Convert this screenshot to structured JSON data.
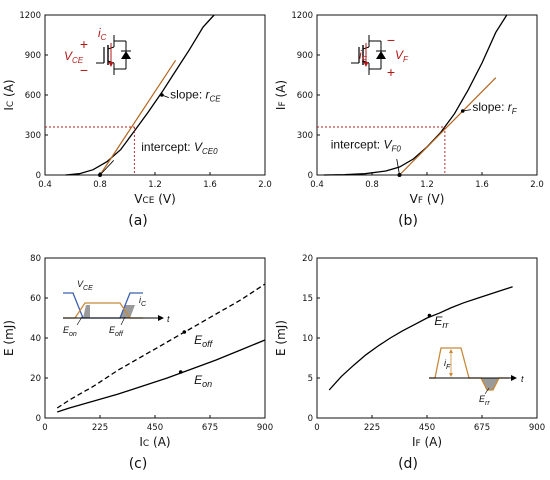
{
  "colors": {
    "axis": "#111111",
    "curve": "#000000",
    "fit": "#b5651d",
    "guide": "#b01818",
    "inset_blue": "#3a5fb0",
    "inset_orange": "#c8893a",
    "inset_gray": "#9a9a9a",
    "symbol_red": "#b01818"
  },
  "chart_data": [
    {
      "id": "a",
      "type": "line",
      "panel_label": "(a)",
      "xlabel": "VCE (V)",
      "ylabel": "IC (A)",
      "xlim": [
        0.4,
        2.0
      ],
      "ylim": [
        0,
        1200
      ],
      "xticks": [
        "0.4",
        "0.8",
        "1.2",
        "1.6",
        "2.0"
      ],
      "yticks": [
        "0",
        "300",
        "600",
        "900",
        "1200"
      ],
      "series": [
        {
          "role": "curve",
          "x": [
            0.55,
            0.65,
            0.75,
            0.85,
            0.95,
            1.05,
            1.15,
            1.25,
            1.35,
            1.45,
            1.55,
            1.63
          ],
          "y": [
            0,
            10,
            40,
            100,
            190,
            330,
            470,
            620,
            780,
            940,
            1110,
            1200
          ]
        },
        {
          "role": "fit",
          "x": [
            0.8,
            1.35
          ],
          "y": [
            0,
            860
          ]
        }
      ],
      "operating_point": {
        "x": 1.05,
        "y": 360
      },
      "annotations": [
        {
          "text": "slope: ",
          "symbol": "r",
          "sub": "CE"
        },
        {
          "text": "intercept: ",
          "symbol": "V",
          "sub": "CE0"
        }
      ],
      "symbol": {
        "current": "i",
        "current_sub": "C",
        "voltage": "V",
        "voltage_sub": "CE",
        "plus": "+",
        "minus": "−"
      }
    },
    {
      "id": "b",
      "type": "line",
      "panel_label": "(b)",
      "xlabel": "VF (V)",
      "ylabel": "IF (A)",
      "xlim": [
        0.4,
        2.0
      ],
      "ylim": [
        0,
        1200
      ],
      "xticks": [
        "0.4",
        "0.8",
        "1.2",
        "1.6",
        "2.0"
      ],
      "yticks": [
        "0",
        "300",
        "600",
        "900",
        "1200"
      ],
      "series": [
        {
          "role": "curve",
          "x": [
            0.45,
            0.6,
            0.75,
            0.9,
            1.0,
            1.1,
            1.2,
            1.3,
            1.4,
            1.5,
            1.6,
            1.7,
            1.78
          ],
          "y": [
            0,
            3,
            10,
            30,
            60,
            120,
            210,
            320,
            460,
            640,
            840,
            1070,
            1200
          ]
        },
        {
          "role": "fit",
          "x": [
            1.0,
            1.7
          ],
          "y": [
            0,
            730
          ]
        }
      ],
      "operating_point": {
        "x": 1.33,
        "y": 360
      },
      "annotations": [
        {
          "text": "slope: ",
          "symbol": "r",
          "sub": "F"
        },
        {
          "text": "intercept: ",
          "symbol": "V",
          "sub": "F0"
        }
      ],
      "symbol": {
        "current": "i",
        "current_sub": "F",
        "voltage": "V",
        "voltage_sub": "F",
        "plus": "+",
        "minus": "−"
      }
    },
    {
      "id": "c",
      "type": "line",
      "panel_label": "(c)",
      "xlabel": "IC (A)",
      "ylabel": "E (mJ)",
      "xlim": [
        0,
        900
      ],
      "ylim": [
        0,
        80
      ],
      "xticks": [
        "0",
        "225",
        "450",
        "675",
        "900"
      ],
      "yticks": [
        "0",
        "20",
        "40",
        "60",
        "80"
      ],
      "series": [
        {
          "name": "Eoff",
          "label_main": "E",
          "label_sub": "off",
          "dashed": true,
          "x": [
            50,
            100,
            200,
            300,
            400,
            500,
            600,
            700,
            800,
            900
          ],
          "y": [
            5,
            9,
            16,
            24,
            31,
            38,
            45,
            52,
            59,
            67
          ]
        },
        {
          "name": "Eon",
          "label_main": "E",
          "label_sub": "on",
          "dashed": false,
          "x": [
            50,
            100,
            200,
            300,
            400,
            500,
            600,
            700,
            800,
            900
          ],
          "y": [
            3,
            5,
            8.5,
            12,
            16,
            20,
            24.5,
            29,
            34,
            39
          ]
        }
      ],
      "inset": {
        "v_main": "V",
        "v_sub": "CE",
        "i_main": "i",
        "i_sub": "C",
        "t": "t",
        "eon_main": "E",
        "eon_sub": "on",
        "eoff_main": "E",
        "eoff_sub": "off"
      }
    },
    {
      "id": "d",
      "type": "line",
      "panel_label": "(d)",
      "xlabel": "IF (A)",
      "ylabel": "E (mJ)",
      "xlim": [
        0,
        900
      ],
      "ylim": [
        0,
        20
      ],
      "xticks": [
        "0",
        "225",
        "450",
        "675",
        "900"
      ],
      "yticks": [
        "0",
        "5",
        "10",
        "15",
        "20"
      ],
      "series": [
        {
          "name": "Err",
          "label_main": "E",
          "label_sub": "rr",
          "dashed": false,
          "x": [
            50,
            100,
            150,
            200,
            250,
            300,
            350,
            400,
            450,
            500,
            550,
            600,
            650,
            700,
            750,
            800
          ],
          "y": [
            3.5,
            5.2,
            6.6,
            7.9,
            9.0,
            10.0,
            10.9,
            11.7,
            12.5,
            13.1,
            13.8,
            14.4,
            14.9,
            15.4,
            15.9,
            16.4
          ]
        }
      ],
      "inset": {
        "i_main": "i",
        "i_sub": "F",
        "t": "t",
        "err_main": "E",
        "err_sub": "rr"
      }
    }
  ]
}
